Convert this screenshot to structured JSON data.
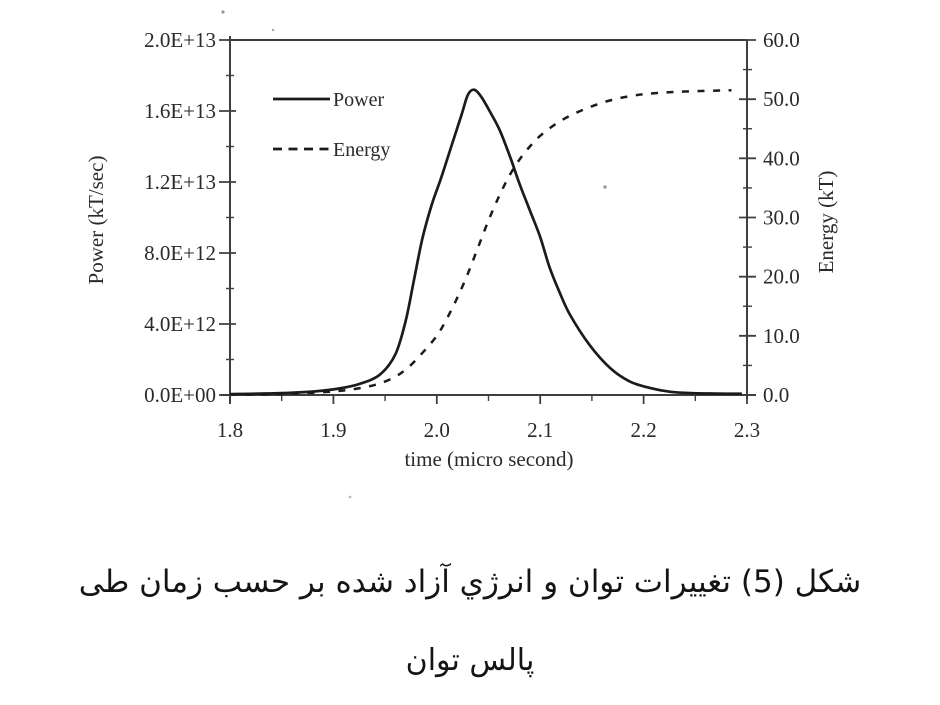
{
  "caption": {
    "line1": "شکل (5) تغییرات توان و انرژي آزاد شده بر حسب زمان طی",
    "line2": "پالس توان"
  },
  "chart_data": {
    "type": "line",
    "title": "",
    "grid": false,
    "legend_position": "upper-left-inside",
    "x_axis": {
      "label": "time (micro second)",
      "range": [
        1.8,
        2.3
      ],
      "ticks": [
        {
          "v": 1.8,
          "t": "1.8"
        },
        {
          "v": 1.9,
          "t": "1.9"
        },
        {
          "v": 2.0,
          "t": "2.0"
        },
        {
          "v": 2.1,
          "t": "2.1"
        },
        {
          "v": 2.2,
          "t": "2.2"
        },
        {
          "v": 2.3,
          "t": "2.3"
        }
      ]
    },
    "y_axis_left": {
      "label": "Power (kT/sec)",
      "range": [
        0,
        20000000000000.0
      ],
      "ticks": [
        {
          "v": 20000000000000.0,
          "t": "2.0E+13"
        },
        {
          "v": 16000000000000.0,
          "t": "1.6E+13"
        },
        {
          "v": 12000000000000.0,
          "t": "1.2E+13"
        },
        {
          "v": 8000000000000.0,
          "t": "8.0E+12"
        },
        {
          "v": 4000000000000.0,
          "t": "4.0E+12"
        },
        {
          "v": 0,
          "t": "0.0E+00"
        }
      ]
    },
    "y_axis_right": {
      "label": "Energy (kT)",
      "range": [
        0,
        60
      ],
      "ticks": [
        {
          "v": 60,
          "t": "60.0"
        },
        {
          "v": 50,
          "t": "50.0"
        },
        {
          "v": 40,
          "t": "40.0"
        },
        {
          "v": 30,
          "t": "30.0"
        },
        {
          "v": 20,
          "t": "20.0"
        },
        {
          "v": 10,
          "t": "10.0"
        },
        {
          "v": 0,
          "t": "0.0"
        }
      ]
    },
    "legend": [
      {
        "label": "Power",
        "line": "solid"
      },
      {
        "label": "Energy",
        "line": "dashed"
      }
    ],
    "series": [
      {
        "name": "Power",
        "axis": "left",
        "line": "solid",
        "points": [
          [
            1.8,
            50000000000.0
          ],
          [
            1.83,
            80000000000.0
          ],
          [
            1.86,
            130000000000.0
          ],
          [
            1.885,
            220000000000.0
          ],
          [
            1.905,
            360000000000.0
          ],
          [
            1.925,
            620000000000.0
          ],
          [
            1.945,
            1150000000000.0
          ],
          [
            1.96,
            2300000000000.0
          ],
          [
            1.97,
            4200000000000.0
          ],
          [
            1.978,
            6500000000000.0
          ],
          [
            1.986,
            8800000000000.0
          ],
          [
            1.995,
            10700000000000.0
          ],
          [
            2.004,
            12200000000000.0
          ],
          [
            2.014,
            14000000000000.0
          ],
          [
            2.024,
            15800000000000.0
          ],
          [
            2.03,
            16900000000000.0
          ],
          [
            2.036,
            17200000000000.0
          ],
          [
            2.043,
            16800000000000.0
          ],
          [
            2.052,
            15900000000000.0
          ],
          [
            2.061,
            14900000000000.0
          ],
          [
            2.071,
            13400000000000.0
          ],
          [
            2.08,
            11900000000000.0
          ],
          [
            2.09,
            10400000000000.0
          ],
          [
            2.1,
            8900000000000.0
          ],
          [
            2.109,
            7200000000000.0
          ],
          [
            2.119,
            5750000000000.0
          ],
          [
            2.129,
            4500000000000.0
          ],
          [
            2.148,
            2800000000000.0
          ],
          [
            2.168,
            1500000000000.0
          ],
          [
            2.187,
            750000000000.0
          ],
          [
            2.206,
            400000000000.0
          ],
          [
            2.226,
            180000000000.0
          ],
          [
            2.248,
            100000000000.0
          ],
          [
            2.27,
            80000000000.0
          ],
          [
            2.295,
            70000000000.0
          ]
        ]
      },
      {
        "name": "Energy",
        "axis": "right",
        "line": "dashed",
        "points": [
          [
            1.8,
            0.05
          ],
          [
            1.84,
            0.12
          ],
          [
            1.87,
            0.3
          ],
          [
            1.9,
            0.6
          ],
          [
            1.92,
            1.0
          ],
          [
            1.94,
            1.7
          ],
          [
            1.958,
            2.9
          ],
          [
            1.972,
            4.6
          ],
          [
            1.985,
            6.9
          ],
          [
            2.0,
            10.0
          ],
          [
            2.01,
            13.0
          ],
          [
            2.02,
            16.5
          ],
          [
            2.03,
            20.5
          ],
          [
            2.04,
            25.0
          ],
          [
            2.05,
            29.5
          ],
          [
            2.06,
            33.5
          ],
          [
            2.07,
            37.0
          ],
          [
            2.08,
            39.8
          ],
          [
            2.09,
            42.0
          ],
          [
            2.1,
            43.8
          ],
          [
            2.115,
            45.8
          ],
          [
            2.13,
            47.3
          ],
          [
            2.15,
            48.8
          ],
          [
            2.17,
            49.9
          ],
          [
            2.19,
            50.6
          ],
          [
            2.21,
            51.0
          ],
          [
            2.24,
            51.3
          ],
          [
            2.285,
            51.5
          ]
        ]
      }
    ],
    "colors": {
      "ink": "#1b1b1b",
      "axis": "#3f3f3f",
      "text": "#2a2a2a",
      "background": "#ffffff"
    }
  }
}
